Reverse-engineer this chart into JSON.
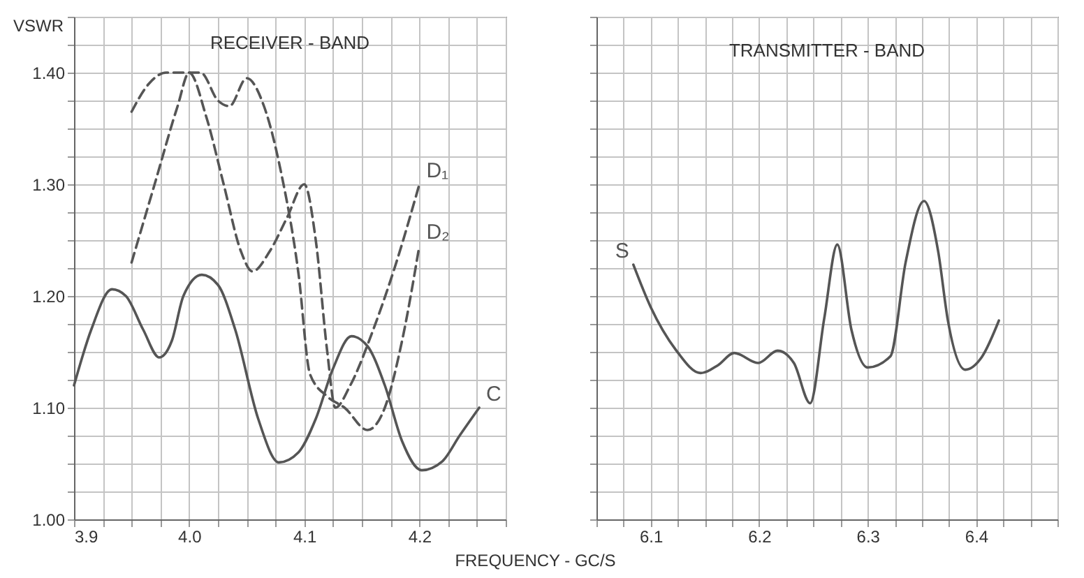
{
  "chart_data": [
    {
      "type": "line",
      "title": "RECEIVER - BAND",
      "xlabel": "FREQUENCY - GC/S",
      "ylabel": "VSWR",
      "xlim": [
        3.9,
        4.275
      ],
      "ylim": [
        1.0,
        1.45
      ],
      "xticks": [
        {
          "value": 3.9,
          "label": "3.9"
        },
        {
          "value": 3.925,
          "label": null
        },
        {
          "value": 3.95,
          "label": null
        },
        {
          "value": 3.975,
          "label": null
        },
        {
          "value": 4.0,
          "label": "4.0"
        },
        {
          "value": 4.025,
          "label": null
        },
        {
          "value": 4.05,
          "label": null
        },
        {
          "value": 4.075,
          "label": null
        },
        {
          "value": 4.1,
          "label": "4.1"
        },
        {
          "value": 4.125,
          "label": null
        },
        {
          "value": 4.15,
          "label": null
        },
        {
          "value": 4.175,
          "label": null
        },
        {
          "value": 4.2,
          "label": "4.2"
        },
        {
          "value": 4.225,
          "label": null
        },
        {
          "value": 4.25,
          "label": null
        },
        {
          "value": 4.275,
          "label": null
        }
      ],
      "yticks": [
        {
          "value": 1.0,
          "label": "1.00"
        },
        {
          "value": 1.025,
          "label": null
        },
        {
          "value": 1.05,
          "label": null
        },
        {
          "value": 1.075,
          "label": null
        },
        {
          "value": 1.1,
          "label": "1.10"
        },
        {
          "value": 1.125,
          "label": null
        },
        {
          "value": 1.15,
          "label": null
        },
        {
          "value": 1.175,
          "label": null
        },
        {
          "value": 1.2,
          "label": "1.20"
        },
        {
          "value": 1.225,
          "label": null
        },
        {
          "value": 1.25,
          "label": null
        },
        {
          "value": 1.275,
          "label": null
        },
        {
          "value": 1.3,
          "label": "1.30"
        },
        {
          "value": 1.325,
          "label": null
        },
        {
          "value": 1.35,
          "label": null
        },
        {
          "value": 1.375,
          "label": null
        },
        {
          "value": 1.4,
          "label": "1.40"
        },
        {
          "value": 1.425,
          "label": null
        },
        {
          "value": 1.45,
          "label": null
        }
      ],
      "grid": true,
      "marker": "none",
      "series": [
        {
          "name": "D₁",
          "color": "#555555",
          "line_style": "dashed",
          "x": [
            3.95,
            3.97,
            3.99,
            4.0,
            4.015,
            4.03,
            4.045,
            4.055,
            4.07,
            4.085,
            4.1,
            4.11,
            4.12,
            4.127,
            4.14,
            4.16,
            4.18,
            4.2
          ],
          "values": [
            1.23,
            1.3,
            1.37,
            1.4,
            1.36,
            1.3,
            1.24,
            1.222,
            1.24,
            1.27,
            1.3,
            1.25,
            1.15,
            1.1,
            1.12,
            1.17,
            1.23,
            1.3
          ]
        },
        {
          "name": "D₂",
          "color": "#555555",
          "line_style": "dashed",
          "x": [
            3.95,
            3.965,
            3.98,
            4.0,
            4.01,
            4.025,
            4.035,
            4.05,
            4.065,
            4.08,
            4.095,
            4.105,
            4.12,
            4.135,
            4.155,
            4.17,
            4.185,
            4.2
          ],
          "values": [
            1.365,
            1.39,
            1.4,
            1.4,
            1.4,
            1.375,
            1.37,
            1.395,
            1.37,
            1.31,
            1.22,
            1.13,
            1.11,
            1.1,
            1.08,
            1.1,
            1.16,
            1.245
          ]
        },
        {
          "name": "C",
          "color": "#555555",
          "line_style": "solid",
          "x": [
            3.9,
            3.915,
            3.933,
            3.945,
            3.96,
            3.974,
            3.985,
            3.995,
            4.011,
            4.025,
            4.04,
            4.06,
            4.078,
            4.095,
            4.11,
            4.125,
            4.141,
            4.155,
            4.17,
            4.185,
            4.202,
            4.22,
            4.235,
            4.252
          ],
          "values": [
            1.12,
            1.17,
            1.206,
            1.2,
            1.17,
            1.145,
            1.16,
            1.2,
            1.219,
            1.21,
            1.17,
            1.09,
            1.051,
            1.06,
            1.09,
            1.135,
            1.164,
            1.155,
            1.12,
            1.07,
            1.044,
            1.052,
            1.075,
            1.1
          ]
        }
      ]
    },
    {
      "type": "line",
      "title": "TRANSMITTER - BAND",
      "xlim": [
        6.05,
        6.475
      ],
      "ylim": [
        1.0,
        1.45
      ],
      "tick_labels": "x",
      "xticks": [
        {
          "value": 6.05,
          "label": null
        },
        {
          "value": 6.075,
          "label": null
        },
        {
          "value": 6.1,
          "label": "6.1"
        },
        {
          "value": 6.125,
          "label": null
        },
        {
          "value": 6.15,
          "label": null
        },
        {
          "value": 6.175,
          "label": null
        },
        {
          "value": 6.2,
          "label": "6.2"
        },
        {
          "value": 6.225,
          "label": null
        },
        {
          "value": 6.25,
          "label": null
        },
        {
          "value": 6.275,
          "label": null
        },
        {
          "value": 6.3,
          "label": "6.3"
        },
        {
          "value": 6.325,
          "label": null
        },
        {
          "value": 6.35,
          "label": null
        },
        {
          "value": 6.375,
          "label": null
        },
        {
          "value": 6.4,
          "label": "6.4"
        },
        {
          "value": 6.425,
          "label": null
        },
        {
          "value": 6.45,
          "label": null
        },
        {
          "value": 6.475,
          "label": null
        }
      ],
      "yticks": [
        {
          "value": 1.0,
          "label": null
        },
        {
          "value": 1.025,
          "label": null
        },
        {
          "value": 1.05,
          "label": null
        },
        {
          "value": 1.075,
          "label": null
        },
        {
          "value": 1.1,
          "label": null
        },
        {
          "value": 1.125,
          "label": null
        },
        {
          "value": 1.15,
          "label": null
        },
        {
          "value": 1.175,
          "label": null
        },
        {
          "value": 1.2,
          "label": null
        },
        {
          "value": 1.225,
          "label": null
        },
        {
          "value": 1.25,
          "label": null
        },
        {
          "value": 1.275,
          "label": null
        },
        {
          "value": 1.3,
          "label": null
        },
        {
          "value": 1.325,
          "label": null
        },
        {
          "value": 1.35,
          "label": null
        },
        {
          "value": 1.375,
          "label": null
        },
        {
          "value": 1.4,
          "label": null
        },
        {
          "value": 1.425,
          "label": null
        },
        {
          "value": 1.45,
          "label": null
        }
      ],
      "grid": true,
      "marker": "none",
      "series": [
        {
          "name": "S",
          "color": "#555555",
          "line_style": "solid",
          "x": [
            6.084,
            6.1,
            6.123,
            6.146,
            6.162,
            6.177,
            6.199,
            6.217,
            6.232,
            6.247,
            6.26,
            6.272,
            6.285,
            6.3,
            6.321,
            6.335,
            6.352,
            6.365,
            6.374,
            6.39,
            6.405,
            6.421
          ],
          "values": [
            1.228,
            1.19,
            1.152,
            1.131,
            1.138,
            1.149,
            1.14,
            1.151,
            1.14,
            1.104,
            1.18,
            1.246,
            1.17,
            1.136,
            1.146,
            1.23,
            1.285,
            1.24,
            1.178,
            1.134,
            1.145,
            1.178
          ]
        }
      ]
    }
  ]
}
